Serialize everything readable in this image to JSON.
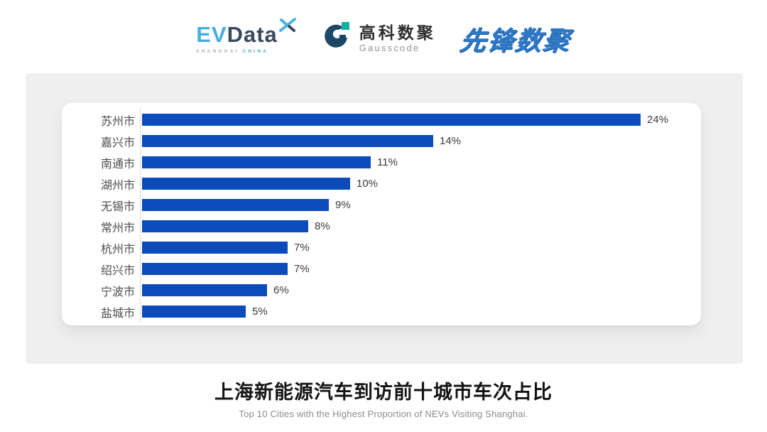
{
  "header": {
    "evdata": {
      "ev": "EV",
      "data": "Data",
      "sub_shanghai": "SHANGHAI",
      "sub_china": "CHINA"
    },
    "gausscode": {
      "cn": "高科数聚",
      "en": "Gausscode"
    },
    "xianfeng": {
      "text": "先锋数聚"
    }
  },
  "chart_data": {
    "type": "bar",
    "orientation": "horizontal",
    "categories": [
      "苏州市",
      "嘉兴市",
      "南通市",
      "湖州市",
      "无锡市",
      "常州市",
      "杭州市",
      "绍兴市",
      "宁波市",
      "盐城市"
    ],
    "values": [
      24,
      14,
      11,
      10,
      9,
      8,
      7,
      7,
      6,
      5
    ],
    "value_labels": [
      "24%",
      "14%",
      "11%",
      "10%",
      "9%",
      "8%",
      "7%",
      "7%",
      "6%",
      "5%"
    ],
    "unit": "%",
    "xlim": [
      0,
      24
    ],
    "grid": false,
    "legend": false,
    "bar_color": "#0B4BBB",
    "title": "上海新能源汽车到访前十城市车次占比",
    "subtitle": "Top 10 Cities with the Highest Proportion of  NEVs Visiting Shanghai."
  }
}
